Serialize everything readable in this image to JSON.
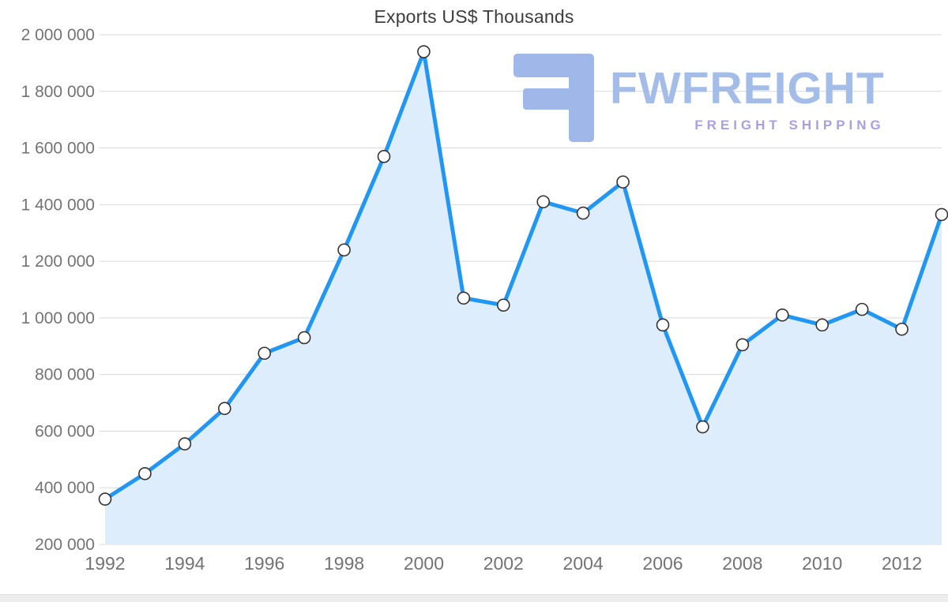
{
  "chart_data": {
    "type": "area",
    "title": "Exports US$ Thousands",
    "x": [
      1992,
      1993,
      1994,
      1995,
      1996,
      1997,
      1998,
      1999,
      2000,
      2001,
      2002,
      2003,
      2004,
      2005,
      2006,
      2007,
      2008,
      2009,
      2010,
      2011,
      2012,
      2013
    ],
    "values": [
      360000,
      450000,
      555000,
      680000,
      875000,
      930000,
      1240000,
      1570000,
      1940000,
      1070000,
      1045000,
      1410000,
      1370000,
      1480000,
      975000,
      615000,
      905000,
      1010000,
      975000,
      1030000,
      960000,
      1365000
    ],
    "xlabel": "",
    "ylabel": "",
    "ylim": [
      200000,
      2000000
    ],
    "ytick_step": 200000,
    "xtick_step": 2,
    "grid": true,
    "legend": "none",
    "colors": {
      "line": "#2196f3",
      "fill": "#ddedfb",
      "grid": "#d9d9d9",
      "axis_text": "#737373",
      "title_text": "#3d3d3d",
      "marker_fill": "#ffffff",
      "marker_stroke": "#333333",
      "logo_primary": "#a3bce8",
      "logo_tagline": "#ab9fe0"
    }
  },
  "logo": {
    "name": "FWFREIGHT",
    "tagline": "FREIGHT SHIPPING"
  }
}
